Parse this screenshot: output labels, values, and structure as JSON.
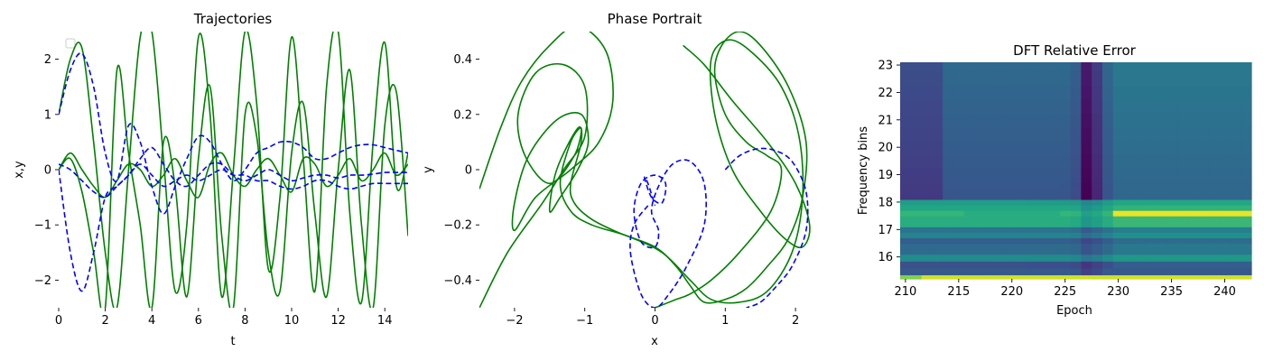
{
  "colors": {
    "green": "#008000",
    "blue": "#0000ff"
  },
  "charts": [
    {
      "type": "line",
      "title": "Trajectories",
      "xlabel": "t",
      "ylabel": "x,y",
      "xlim": [
        0,
        15
      ],
      "ylim": [
        -2.5,
        2.5
      ],
      "xticks": [
        0,
        2,
        4,
        6,
        8,
        10,
        12,
        14
      ],
      "yticks": [
        -2,
        -1,
        0,
        1,
        2
      ],
      "legend": "top-left (empty)"
    },
    {
      "type": "line",
      "title": "Phase Portrait",
      "xlabel": "x",
      "ylabel": "y",
      "xlim": [
        -2.5,
        2.5
      ],
      "ylim": [
        -0.5,
        0.5
      ],
      "xticks": [
        -2,
        -1,
        0,
        1,
        2
      ],
      "yticks": [
        -0.4,
        -0.2,
        0.0,
        0.2,
        0.4
      ]
    },
    {
      "type": "heatmap",
      "title": "DFT Relative Error",
      "xlabel": "Epoch",
      "ylabel": "Frequency bins",
      "xlim": [
        209.5,
        242.5
      ],
      "ylim": [
        15.2,
        23.1
      ],
      "xticks": [
        210,
        215,
        220,
        225,
        230,
        235,
        240
      ],
      "yticks": [
        16,
        17,
        18,
        19,
        20,
        21,
        22,
        23
      ],
      "colormap": "viridis"
    }
  ],
  "chart_data": [
    {
      "type": "line",
      "series": [
        {
          "style": "solid",
          "color": "green",
          "x": [
            0,
            0.5,
            1,
            1.5,
            2,
            2.5,
            3,
            3.5,
            4,
            4.5,
            5,
            5.5,
            6,
            6.5,
            7,
            7.5,
            8,
            8.5,
            9,
            9.5,
            10,
            10.5,
            11,
            11.5,
            12,
            12.5,
            13,
            13.5,
            14,
            14.5,
            15
          ],
          "y": [
            1.0,
            2.0,
            2.2,
            0.5,
            -1.5,
            -2.5,
            0.0,
            2.4,
            2.5,
            0.2,
            -2.2,
            -1.0,
            2.4,
            1.0,
            -2.3,
            0.0,
            2.5,
            1.2,
            -1.8,
            -0.5,
            2.4,
            0.2,
            -2.2,
            1.5,
            2.5,
            -0.8,
            -2.4,
            0.5,
            2.3,
            -0.3,
            0.3
          ]
        },
        {
          "style": "solid",
          "color": "green",
          "x": [
            0,
            0.5,
            1,
            1.5,
            2,
            2.5,
            3,
            3.5,
            4,
            4.5,
            5,
            5.5,
            6,
            6.5,
            7,
            7.5,
            8,
            8.5,
            9,
            9.5,
            10,
            10.5,
            11,
            11.5,
            12,
            12.5,
            13,
            13.5,
            14,
            14.5,
            15
          ],
          "y": [
            0.0,
            0.2,
            -0.4,
            -1.5,
            -2.5,
            1.8,
            0.3,
            -1.0,
            -2.5,
            0.5,
            -0.3,
            -2.3,
            0.2,
            1.5,
            -1.2,
            -2.5,
            1.0,
            0.6,
            -1.5,
            -2.2,
            0.3,
            1.2,
            -0.8,
            -2.3,
            0.0,
            1.8,
            -1.0,
            -2.5,
            0.8,
            1.4,
            -1.2
          ]
        },
        {
          "style": "solid",
          "color": "green",
          "x": [
            0,
            0.5,
            1,
            1.5,
            2,
            2.5,
            3,
            3.5,
            4,
            4.5,
            5,
            5.5,
            6,
            6.5,
            7,
            7.5,
            8,
            8.5,
            9,
            9.5,
            10,
            10.5,
            11,
            11.5,
            12,
            12.5,
            13,
            13.5,
            14,
            14.5,
            15
          ],
          "y": [
            0.0,
            0.3,
            0.0,
            -0.3,
            -0.5,
            -0.2,
            0.1,
            0.0,
            -0.3,
            -0.1,
            0.2,
            -0.2,
            -0.5,
            0.1,
            0.3,
            -0.1,
            -0.3,
            0.0,
            0.2,
            -0.1,
            -0.4,
            0.2,
            0.1,
            -0.3,
            -0.1,
            0.2,
            -0.2,
            0.0,
            0.3,
            -0.1,
            0.1
          ]
        },
        {
          "style": "dashed",
          "color": "blue",
          "x": [
            0,
            0.5,
            1,
            1.5,
            2,
            2.5,
            3,
            3.5,
            4,
            4.5,
            5,
            5.5,
            6,
            6.5,
            7,
            7.5,
            8,
            8.5,
            9,
            9.5,
            10,
            10.5,
            11,
            11.5,
            12,
            12.5,
            13,
            13.5,
            14,
            14.5,
            15
          ],
          "y": [
            1.0,
            1.8,
            2.1,
            1.5,
            0.3,
            -0.2,
            0.8,
            0.5,
            -0.3,
            -0.8,
            -0.3,
            0.2,
            0.6,
            0.5,
            0.1,
            -0.2,
            0.0,
            0.3,
            0.4,
            0.5,
            0.5,
            0.4,
            0.2,
            0.2,
            0.3,
            0.4,
            0.45,
            0.45,
            0.4,
            0.35,
            0.3
          ]
        },
        {
          "style": "dashed",
          "color": "blue",
          "x": [
            0,
            0.5,
            1,
            1.5,
            2,
            2.5,
            3,
            3.5,
            4,
            4.5,
            5,
            5.5,
            6,
            6.5,
            7,
            7.5,
            8,
            8.5,
            9,
            9.5,
            10,
            10.5,
            11,
            11.5,
            12,
            12.5,
            13,
            13.5,
            14,
            14.5,
            15
          ],
          "y": [
            0.0,
            -1.5,
            -2.2,
            -1.5,
            -0.5,
            -0.3,
            -0.1,
            0.2,
            0.4,
            0.1,
            -0.2,
            -0.3,
            -0.1,
            0.1,
            0.1,
            -0.1,
            -0.2,
            -0.1,
            0.0,
            -0.1,
            -0.2,
            -0.15,
            -0.1,
            -0.1,
            -0.15,
            -0.1,
            -0.1,
            -0.08,
            -0.05,
            -0.05,
            -0.05
          ]
        },
        {
          "style": "dashed",
          "color": "blue",
          "x": [
            0,
            0.5,
            1,
            1.5,
            2,
            2.5,
            3,
            3.5,
            4,
            4.5,
            5,
            5.5,
            6,
            6.5,
            7,
            7.5,
            8,
            8.5,
            9,
            9.5,
            10,
            10.5,
            11,
            11.5,
            12,
            12.5,
            13,
            13.5,
            14,
            14.5,
            15
          ],
          "y": [
            0.1,
            0.0,
            -0.2,
            -0.4,
            -0.5,
            -0.3,
            -0.1,
            0.1,
            -0.1,
            -0.3,
            -0.2,
            -0.1,
            -0.2,
            -0.1,
            0.0,
            -0.1,
            -0.1,
            -0.2,
            -0.2,
            -0.3,
            -0.35,
            -0.3,
            -0.2,
            -0.2,
            -0.3,
            -0.35,
            -0.3,
            -0.25,
            -0.25,
            -0.25,
            -0.25
          ]
        }
      ]
    },
    {
      "type": "line",
      "series": [
        {
          "style": "solid",
          "color": "green",
          "x": [
            -2.5,
            -2.2,
            -1.9,
            -1.5,
            -1.1,
            -0.7,
            -0.6,
            -0.8,
            -1.2,
            -1.7,
            -2.0,
            -2.0,
            -1.8,
            -1.4,
            -1.05,
            -0.95,
            -1.1,
            -1.35,
            -1.5,
            -1.4,
            -1.1,
            -1.05,
            -1.2,
            -1.15,
            -0.9,
            -0.5,
            0.0,
            0.3,
            0.5,
            0.7,
            1.0,
            1.3,
            1.6,
            1.9,
            2.1,
            2.15,
            1.9,
            1.5,
            1.2,
            0.95,
            0.85,
            1.0,
            1.3,
            1.6,
            1.8,
            1.65,
            1.2,
            0.8,
            0.5,
            0.3,
            0.0
          ],
          "y": [
            -0.07,
            0.15,
            0.32,
            0.45,
            0.52,
            0.43,
            0.25,
            0.1,
            0.0,
            -0.1,
            -0.22,
            -0.12,
            0.05,
            0.18,
            0.2,
            0.1,
            0.0,
            -0.1,
            -0.15,
            0.0,
            0.15,
            0.1,
            -0.05,
            -0.12,
            -0.18,
            -0.23,
            -0.28,
            -0.35,
            -0.42,
            -0.48,
            -0.47,
            -0.43,
            -0.35,
            -0.25,
            -0.1,
            0.1,
            0.3,
            0.45,
            0.5,
            0.45,
            0.35,
            0.2,
            0.1,
            0.05,
            0.0,
            -0.15,
            -0.3,
            -0.4,
            -0.45,
            -0.47,
            -0.5
          ]
        },
        {
          "style": "solid",
          "color": "green",
          "x": [
            -2.5,
            -2.1,
            -1.6,
            -1.3,
            -1.0,
            -1.0,
            -1.3,
            -1.7,
            -1.95,
            -1.85,
            -1.5,
            -1.15,
            -1.05,
            -1.2,
            -1.35,
            -1.2,
            -0.9,
            -0.4,
            0.1,
            0.5,
            0.8,
            1.2,
            1.6,
            1.95,
            2.1,
            2.05,
            1.8,
            1.4,
            1.05,
            0.8,
            0.85,
            1.1,
            1.5,
            1.85,
            2.1,
            2.2,
            2.0,
            1.6,
            1.1,
            0.7,
            0.4
          ],
          "y": [
            -0.5,
            -0.3,
            -0.12,
            0.0,
            0.12,
            0.3,
            0.38,
            0.35,
            0.2,
            0.05,
            -0.05,
            0.05,
            0.15,
            0.1,
            -0.05,
            -0.15,
            -0.2,
            -0.24,
            -0.3,
            -0.4,
            -0.47,
            -0.48,
            -0.44,
            -0.3,
            -0.1,
            0.12,
            0.3,
            0.42,
            0.47,
            0.4,
            0.2,
            0.0,
            -0.15,
            -0.25,
            -0.28,
            -0.2,
            -0.05,
            0.1,
            0.25,
            0.38,
            0.45
          ]
        },
        {
          "style": "dashed",
          "color": "blue",
          "x": [
            1.0,
            1.2,
            1.45,
            1.7,
            1.95,
            2.15,
            2.15,
            1.95,
            1.7,
            1.5,
            1.3
          ],
          "y": [
            0.0,
            0.05,
            0.075,
            0.07,
            0.03,
            -0.08,
            -0.22,
            -0.35,
            -0.43,
            -0.48,
            -0.5
          ]
        },
        {
          "style": "dashed",
          "color": "blue",
          "x": [
            -0.1,
            -0.3,
            -0.35,
            -0.2,
            0.0,
            0.2,
            0.45,
            0.7,
            0.7,
            0.5,
            0.25,
            0.05,
            -0.05,
            0.05,
            0.0,
            -0.2,
            -0.3,
            -0.2,
            0.0,
            0.15,
            0.1,
            -0.05,
            -0.15,
            -0.1,
            0.0
          ],
          "y": [
            -0.13,
            -0.2,
            -0.3,
            -0.45,
            -0.5,
            -0.45,
            -0.35,
            -0.2,
            -0.05,
            0.03,
            0.02,
            -0.06,
            -0.15,
            -0.22,
            -0.28,
            -0.26,
            -0.15,
            -0.05,
            -0.02,
            -0.05,
            -0.12,
            -0.1,
            -0.03,
            -0.05,
            -0.13
          ]
        }
      ]
    },
    {
      "type": "heatmap",
      "epochs_range": [
        210,
        242
      ],
      "frequency_bins": [
        15.2,
        15.5,
        15.7,
        16.0,
        16.2,
        16.4,
        16.6,
        16.8,
        17.0,
        17.2,
        17.4,
        17.6,
        17.8,
        18.0,
        18.2,
        18.4,
        18.6,
        18.8,
        19.0,
        19.5,
        20.0,
        20.5,
        21.0,
        21.5,
        22.0,
        22.5,
        23.1
      ],
      "notes": [
        "bright band at lowest bins (~15.2)",
        "yellow band near 17.6 increasing after epoch 229",
        "dark vertical streak near epoch 227"
      ]
    }
  ]
}
